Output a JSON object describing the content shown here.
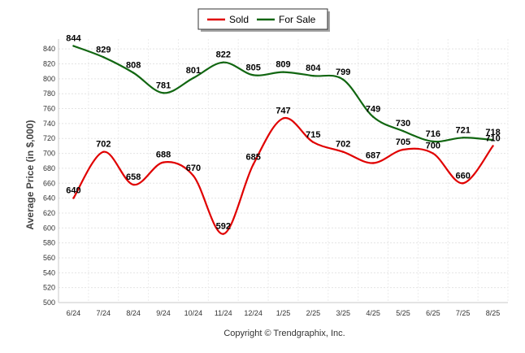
{
  "chart_data": {
    "type": "line",
    "categories": [
      "6/24",
      "7/24",
      "8/24",
      "9/24",
      "10/24",
      "11/24",
      "12/24",
      "1/25",
      "2/25",
      "3/25",
      "4/25",
      "5/25",
      "6/25",
      "7/25",
      "8/25"
    ],
    "series": [
      {
        "name": "Sold",
        "color": "#e00000",
        "values": [
          640,
          702,
          658,
          688,
          670,
          592,
          685,
          747,
          715,
          702,
          687,
          705,
          700,
          660,
          710
        ],
        "labels": [
          "640",
          "702",
          "658",
          "688",
          "670",
          "592",
          "685",
          "747",
          "715",
          "702",
          "687",
          "705",
          "700",
          "660",
          "710"
        ]
      },
      {
        "name": "For Sale",
        "color": "#116611",
        "values": [
          844,
          829,
          808,
          781,
          801,
          822,
          805,
          809,
          804,
          799,
          749,
          730,
          716,
          721,
          718
        ],
        "labels": [
          "844",
          "829",
          "808",
          "781",
          "801",
          "822",
          "805",
          "809",
          "804",
          "799",
          "749",
          "730",
          "716",
          "721",
          "718"
        ]
      }
    ],
    "ylabel": "Average Price (in $,000)",
    "ylim": [
      500,
      850
    ],
    "yticks": [
      "500",
      "520",
      "540",
      "560",
      "580",
      "600",
      "620",
      "640",
      "660",
      "680",
      "700",
      "720",
      "740",
      "760",
      "780",
      "800",
      "820",
      "840"
    ],
    "grid": true,
    "legend_position": "top-center"
  },
  "footer": {
    "copyright": "Copyright © Trendgraphix, Inc."
  }
}
